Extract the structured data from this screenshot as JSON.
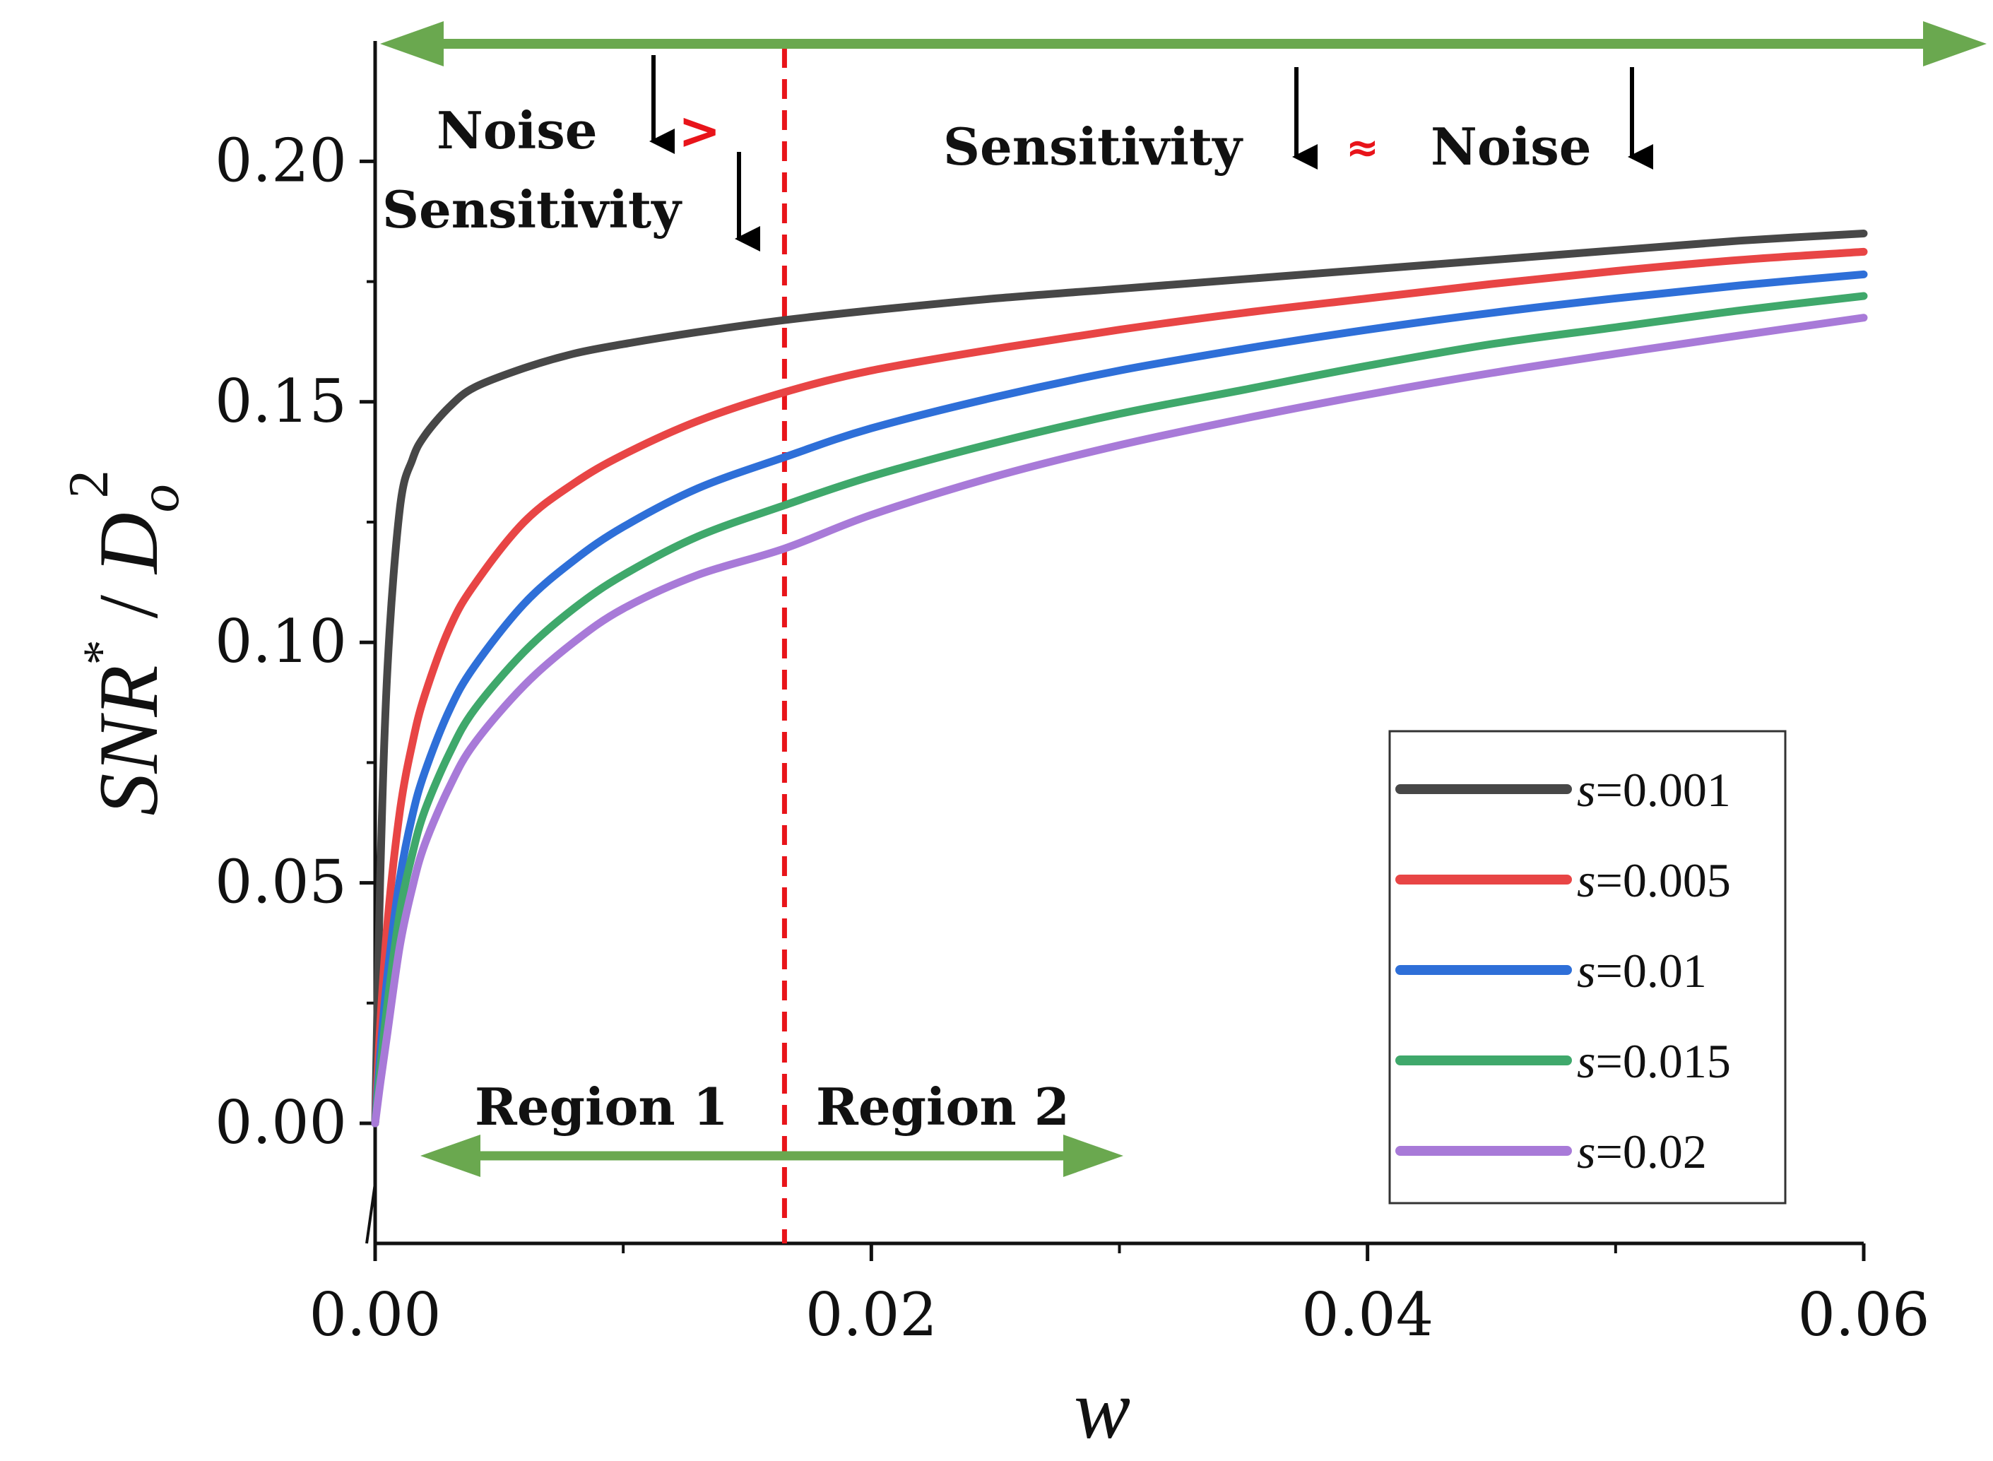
{
  "chart_data": {
    "type": "line",
    "title": "",
    "xlabel": "w",
    "ylabel": {
      "main": "SNR",
      "sup": "*",
      "mid": " / ",
      "var": "D",
      "sub": "o",
      "pow": "2"
    },
    "xlim": [
      0,
      0.06
    ],
    "ylim": [
      -0.024,
      0.225
    ],
    "xticks": [
      0.0,
      0.02,
      0.04,
      0.06
    ],
    "xtick_labels": [
      "0.00",
      "0.02",
      "0.04",
      "0.06"
    ],
    "yticks": [
      0.0,
      0.05,
      0.1,
      0.15,
      0.2
    ],
    "ytick_labels": [
      "0.00",
      "0.05",
      "0.10",
      "0.15",
      "0.20"
    ],
    "legend_position": "bottom-right",
    "series": [
      {
        "name": "s=0.001",
        "s": 0.001,
        "color": "#474747",
        "x": [
          0,
          0.0002,
          0.0005,
          0.001,
          0.0015,
          0.002,
          0.003,
          0.004,
          0.006,
          0.008,
          0.01,
          0.013,
          0.0165,
          0.02,
          0.025,
          0.03,
          0.035,
          0.04,
          0.045,
          0.05,
          0.055,
          0.06
        ],
        "y": [
          0.0,
          0.05,
          0.095,
          0.128,
          0.138,
          0.143,
          0.149,
          0.153,
          0.157,
          0.16,
          0.162,
          0.1645,
          0.167,
          0.169,
          0.1715,
          0.1735,
          0.1755,
          0.1775,
          0.1795,
          0.1815,
          0.1835,
          0.185
        ]
      },
      {
        "name": "s=0.005",
        "s": 0.005,
        "color": "#e84545",
        "x": [
          0,
          0.0002,
          0.0005,
          0.001,
          0.0015,
          0.002,
          0.003,
          0.004,
          0.006,
          0.008,
          0.01,
          0.013,
          0.0165,
          0.02,
          0.025,
          0.03,
          0.035,
          0.04,
          0.045,
          0.05,
          0.055,
          0.06
        ],
        "y": [
          0.0,
          0.02,
          0.042,
          0.065,
          0.079,
          0.089,
          0.103,
          0.112,
          0.125,
          0.133,
          0.139,
          0.146,
          0.152,
          0.1565,
          0.161,
          0.165,
          0.1685,
          0.1715,
          0.1745,
          0.1772,
          0.1795,
          0.1812
        ]
      },
      {
        "name": "s=0.01",
        "s": 0.01,
        "color": "#2e6fd8",
        "x": [
          0,
          0.0002,
          0.0005,
          0.001,
          0.0015,
          0.002,
          0.003,
          0.004,
          0.006,
          0.008,
          0.01,
          0.013,
          0.0165,
          0.02,
          0.025,
          0.03,
          0.035,
          0.04,
          0.045,
          0.05,
          0.055,
          0.06
        ],
        "y": [
          0.0,
          0.014,
          0.031,
          0.051,
          0.064,
          0.073,
          0.086,
          0.095,
          0.108,
          0.117,
          0.124,
          0.132,
          0.1385,
          0.1445,
          0.151,
          0.1565,
          0.161,
          0.165,
          0.1685,
          0.1715,
          0.1742,
          0.1765
        ]
      },
      {
        "name": "s=0.015",
        "s": 0.015,
        "color": "#3fa86b",
        "x": [
          0,
          0.0002,
          0.0005,
          0.001,
          0.0015,
          0.002,
          0.003,
          0.004,
          0.006,
          0.008,
          0.01,
          0.013,
          0.0165,
          0.02,
          0.025,
          0.03,
          0.035,
          0.04,
          0.045,
          0.05,
          0.055,
          0.06
        ],
        "y": [
          0.0,
          0.011,
          0.025,
          0.044,
          0.056,
          0.065,
          0.077,
          0.086,
          0.098,
          0.107,
          0.114,
          0.122,
          0.1285,
          0.1345,
          0.1415,
          0.1475,
          0.1525,
          0.1575,
          0.162,
          0.1655,
          0.169,
          0.172
        ]
      },
      {
        "name": "s=0.02",
        "s": 0.02,
        "color": "#a87ad8",
        "x": [
          0,
          0.0002,
          0.0005,
          0.001,
          0.0015,
          0.002,
          0.003,
          0.004,
          0.006,
          0.008,
          0.01,
          0.013,
          0.0165,
          0.02,
          0.025,
          0.03,
          0.035,
          0.04,
          0.045,
          0.05,
          0.055,
          0.06
        ],
        "y": [
          0.0,
          0.008,
          0.019,
          0.037,
          0.049,
          0.058,
          0.07,
          0.079,
          0.091,
          0.1,
          0.107,
          0.114,
          0.1195,
          0.1265,
          0.1345,
          0.141,
          0.1465,
          0.1515,
          0.156,
          0.16,
          0.1638,
          0.1675
        ]
      }
    ],
    "divider": {
      "x": 0.0165,
      "color": "#e8141a",
      "style": "dashed"
    },
    "annotations": {
      "top_left_line1": "Noise",
      "top_left_compare": ">",
      "top_left_line2": "Sensitivity",
      "top_right_word1": "Sensitivity",
      "top_right_compare": "≈",
      "top_right_word2": "Noise",
      "region1": "Region 1",
      "region2": "Region 2"
    },
    "arrow_color": "#6aa84f"
  }
}
